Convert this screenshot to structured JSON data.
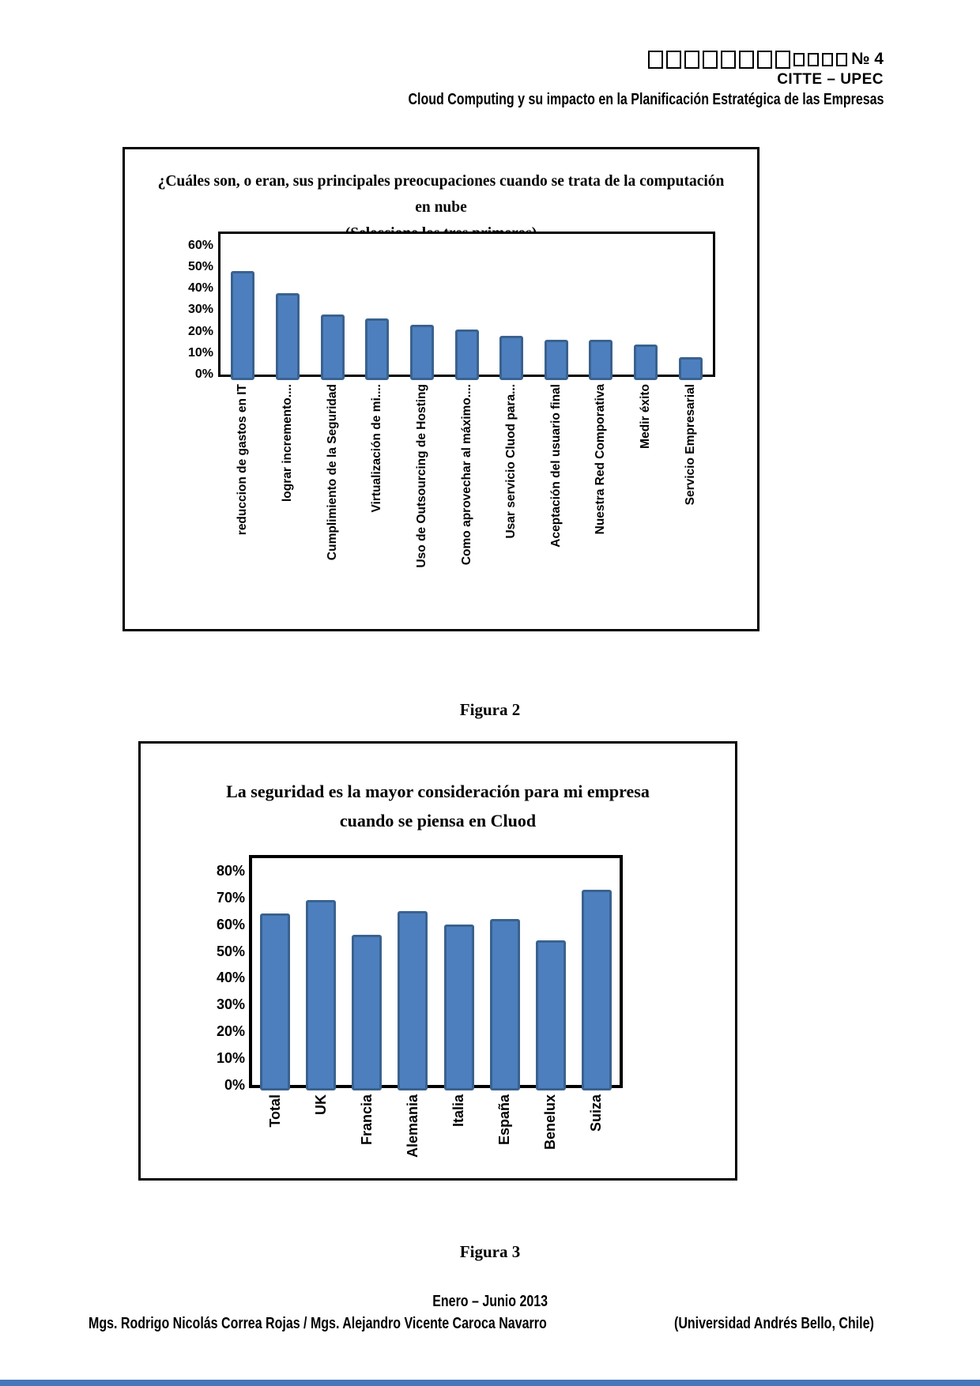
{
  "header": {
    "line1_no": "№ 4",
    "line2": "CITTE – UPEC",
    "line3": "Cloud Computing y su impacto en la Planificación Estratégica de las Empresas"
  },
  "chart_data": [
    {
      "type": "bar",
      "title": "¿Cuáles son, o eran, sus principales preocupaciones cuando se trata de la computación en nube",
      "subtitle": "(Seleccione los tres primeros)",
      "categories": [
        "reduccion de gastos en IT",
        "lograr incremento....",
        "Cumplimiento de la Seguridad",
        "Virtualización de mi....",
        "Uso de Outsourcing de Hosting",
        "Como aprovechar al máximo....",
        "Usar servicio Cluod para...",
        "Aceptación del usuario final",
        "Nuestra Red Comporativa",
        "Medir éxito",
        "Servicio Empresarial"
      ],
      "values": [
        48,
        38,
        28,
        26,
        23,
        21,
        18,
        16,
        16,
        14,
        8
      ],
      "ylim": [
        0,
        60
      ],
      "ytick_step": 10,
      "ytick_labels": [
        "0%",
        "10%",
        "20%",
        "30%",
        "40%",
        "50%",
        "60%"
      ],
      "grid": false,
      "legend": "none",
      "bar_color": "#4d7fbe",
      "bar_border_color": "#3a628f"
    },
    {
      "type": "bar",
      "title": "La seguridad es la mayor consideración para mi empresa",
      "title_line2": "cuando se piensa en Cluod",
      "categories": [
        "Total",
        "UK",
        "Francia",
        "Alemania",
        "Italia",
        "España",
        "Benelux",
        "Suiza"
      ],
      "values": [
        64,
        69,
        56,
        65,
        60,
        62,
        54,
        73
      ],
      "ylim": [
        0,
        80
      ],
      "ytick_step": 10,
      "ytick_labels": [
        "0%",
        "10%",
        "20%",
        "30%",
        "40%",
        "50%",
        "60%",
        "70%",
        "80%"
      ],
      "grid": false,
      "legend": "none",
      "bar_color": "#4d7fbe",
      "bar_border_color": "#3a628f"
    }
  ],
  "captions": {
    "figura2": "Figura 2",
    "figura3": "Figura 3"
  },
  "footer": {
    "period": "Enero – Junio 2013",
    "authors": "Mgs. Rodrigo Nicolás Correa Rojas / Mgs. Alejandro Vicente Caroca Navarro",
    "affiliation": "(Universidad Andrés Bello, Chile)"
  },
  "colors": {
    "bar_fill": "#4d7fbe",
    "bar_border": "#3a628f",
    "bottom_bar": "#4677b8"
  }
}
